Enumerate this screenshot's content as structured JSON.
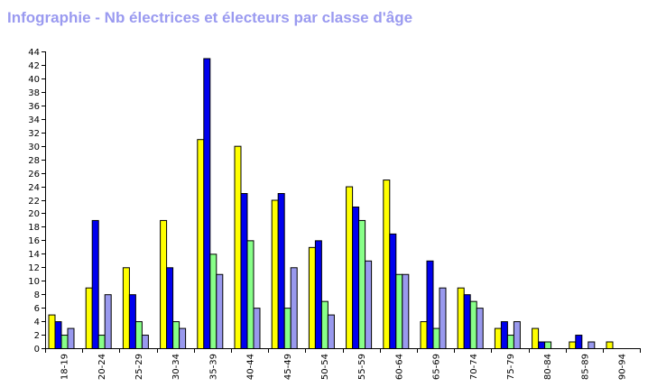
{
  "title": "Infographie - Nb électrices et électeurs par classe d'âge",
  "chart_data": {
    "type": "bar",
    "title": "Infographie - Nb électrices et électeurs par classe d'âge",
    "xlabel": "",
    "ylabel": "",
    "ylim": [
      0,
      44
    ],
    "ytick_step": 2,
    "grid": false,
    "legend": "none",
    "categories": [
      "18-19",
      "20-24",
      "25-29",
      "30-34",
      "35-39",
      "40-44",
      "45-49",
      "50-54",
      "55-59",
      "60-64",
      "65-69",
      "70-74",
      "75-79",
      "80-84",
      "85-89",
      "90-94"
    ],
    "series": [
      {
        "color": "#ffff00",
        "values": [
          5,
          9,
          12,
          19,
          31,
          30,
          22,
          15,
          24,
          25,
          4,
          9,
          3,
          3,
          1,
          1
        ]
      },
      {
        "color": "#0000ee",
        "values": [
          4,
          19,
          8,
          12,
          43,
          23,
          23,
          16,
          21,
          17,
          13,
          8,
          4,
          1,
          2,
          0
        ]
      },
      {
        "color": "#88ff88",
        "values": [
          2,
          2,
          4,
          4,
          14,
          16,
          6,
          7,
          19,
          11,
          3,
          7,
          2,
          1,
          0,
          0
        ]
      },
      {
        "color": "#9999ee",
        "values": [
          3,
          8,
          2,
          3,
          11,
          6,
          12,
          5,
          13,
          11,
          9,
          6,
          4,
          0,
          1,
          0
        ]
      }
    ]
  }
}
